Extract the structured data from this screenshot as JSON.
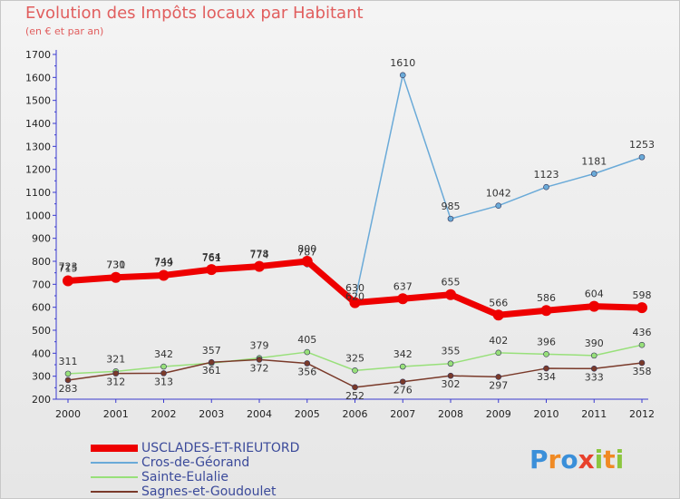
{
  "title": "Evolution des Impôts locaux par Habitant",
  "subtitle": "(en € et par an)",
  "logo": {
    "letters": [
      "P",
      "r",
      "o",
      "x",
      "i",
      "t",
      "i"
    ],
    "colors": [
      "#3a8fd9",
      "#f08a24",
      "#3a8fd9",
      "#e8412c",
      "#8bc63f",
      "#f08a24",
      "#8bc63f"
    ]
  },
  "chart_data": {
    "type": "line",
    "x": [
      "2000",
      "2001",
      "2002",
      "2003",
      "2004",
      "2005",
      "2006",
      "2007",
      "2008",
      "2009",
      "2010",
      "2011",
      "2012"
    ],
    "yticks": [
      "200",
      "300",
      "400",
      "500",
      "600",
      "700",
      "800",
      "900",
      "1000",
      "1100",
      "1200",
      "1300",
      "1400",
      "1500",
      "1600",
      "1700"
    ],
    "ylim": [
      200,
      1700
    ],
    "grid": false,
    "legend_position": "bottom-left",
    "series": [
      {
        "name": "USCLADES-ET-RIEUTORD",
        "color": "#ee0000",
        "width": 7,
        "values": [
          715,
          730,
          739,
          764,
          778,
          800,
          620,
          637,
          655,
          566,
          586,
          604,
          598
        ],
        "labels": [
          "715",
          "730",
          "739",
          "764",
          "778",
          "800",
          "620",
          "637",
          "655",
          "566",
          "586",
          "604",
          "598"
        ]
      },
      {
        "name": "Cros-de-Géorand",
        "color": "#6aaad8",
        "width": 1.5,
        "values": [
          723,
          731,
          744,
          761,
          774,
          787,
          630,
          1610,
          985,
          1042,
          1123,
          1181,
          1253
        ],
        "labels": [
          "723",
          "731",
          "744",
          "761",
          "774",
          "787",
          "630",
          "1610",
          "985",
          "1042",
          "1123",
          "1181",
          "1253"
        ]
      },
      {
        "name": "Sainte-Eulalie",
        "color": "#98e07a",
        "width": 1.5,
        "values": [
          311,
          321,
          342,
          357,
          379,
          405,
          325,
          342,
          355,
          402,
          396,
          390,
          436
        ],
        "labels": [
          "311",
          "321",
          "342",
          "357",
          "379",
          "405",
          "325",
          "342",
          "355",
          "402",
          "396",
          "390",
          "436"
        ]
      },
      {
        "name": "Sagnes-et-Goudoulet",
        "color": "#7a3a2a",
        "width": 1.5,
        "values": [
          283,
          312,
          313,
          361,
          372,
          356,
          252,
          276,
          302,
          297,
          334,
          333,
          358
        ],
        "labels": [
          "283",
          "312",
          "313",
          "361",
          "372",
          "356",
          "252",
          "276",
          "302",
          "297",
          "334",
          "333",
          "358"
        ]
      }
    ]
  }
}
